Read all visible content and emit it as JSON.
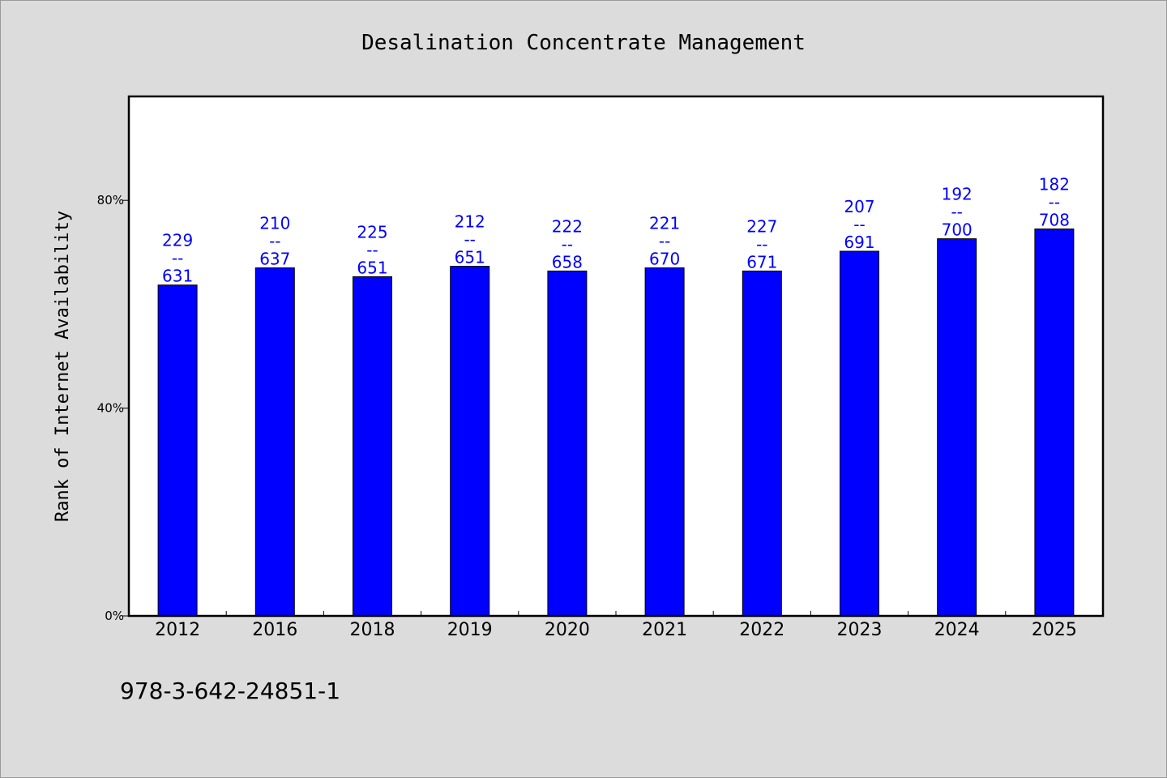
{
  "chart_data": {
    "type": "bar",
    "title": "Desalination Concentrate Management",
    "xlabel": "",
    "ylabel": "Rank of Internet Availability",
    "ylim": [
      0,
      100
    ],
    "yticks": [
      0,
      40,
      80
    ],
    "ytick_labels": [
      "0%",
      "40%",
      "80%"
    ],
    "grid": false,
    "categories": [
      "2012",
      "2016",
      "2018",
      "2019",
      "2020",
      "2021",
      "2022",
      "2023",
      "2024",
      "2025"
    ],
    "values": [
      63.7,
      67.0,
      65.3,
      67.3,
      66.4,
      67.0,
      66.4,
      70.2,
      72.6,
      74.5
    ],
    "data_labels": [
      {
        "top": "229",
        "sep": "--",
        "bottom": "631"
      },
      {
        "top": "210",
        "sep": "--",
        "bottom": "637"
      },
      {
        "top": "225",
        "sep": "--",
        "bottom": "651"
      },
      {
        "top": "212",
        "sep": "--",
        "bottom": "651"
      },
      {
        "top": "222",
        "sep": "--",
        "bottom": "658"
      },
      {
        "top": "221",
        "sep": "--",
        "bottom": "670"
      },
      {
        "top": "227",
        "sep": "--",
        "bottom": "671"
      },
      {
        "top": "207",
        "sep": "--",
        "bottom": "691"
      },
      {
        "top": "192",
        "sep": "--",
        "bottom": "700"
      },
      {
        "top": "182",
        "sep": "--",
        "bottom": "708"
      }
    ],
    "bar_color": "#0000ff",
    "label_color": "#0000ff"
  },
  "footnote": "978-3-642-24851-1"
}
